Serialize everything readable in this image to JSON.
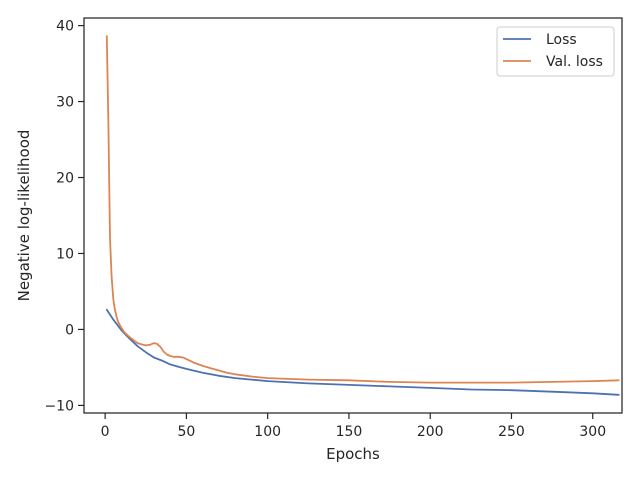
{
  "chart_data": {
    "type": "line",
    "title": "",
    "xlabel": "Epochs",
    "ylabel": "Negative log-likelihood",
    "xlim": [
      -13,
      318
    ],
    "ylim": [
      -11,
      41
    ],
    "xticks": [
      0,
      50,
      100,
      150,
      200,
      250,
      300
    ],
    "yticks": [
      -10,
      0,
      10,
      20,
      30,
      40
    ],
    "ytick_labels": [
      "−10",
      "0",
      "10",
      "20",
      "30",
      "40"
    ],
    "grid": false,
    "legend": {
      "placement": "top-right"
    },
    "series": [
      {
        "name": "Loss",
        "color": "#4c72b0",
        "x": [
          1,
          5,
          10,
          15,
          20,
          25,
          30,
          35,
          40,
          45,
          50,
          60,
          70,
          80,
          90,
          100,
          125,
          150,
          175,
          200,
          225,
          250,
          275,
          300,
          316
        ],
        "y": [
          2.6,
          1.3,
          -0.1,
          -1.2,
          -2.2,
          -3.0,
          -3.7,
          -4.1,
          -4.6,
          -4.9,
          -5.2,
          -5.7,
          -6.1,
          -6.4,
          -6.6,
          -6.8,
          -7.1,
          -7.3,
          -7.5,
          -7.7,
          -7.9,
          -8.0,
          -8.2,
          -8.4,
          -8.6
        ]
      },
      {
        "name": "Val. loss",
        "color": "#dd8452",
        "x": [
          1,
          2,
          3,
          4,
          5,
          6,
          7,
          8,
          10,
          12,
          15,
          18,
          20,
          23,
          25,
          28,
          30,
          32,
          34,
          36,
          38,
          40,
          42,
          45,
          48,
          50,
          55,
          60,
          65,
          70,
          75,
          80,
          90,
          100,
          125,
          150,
          175,
          200,
          225,
          250,
          275,
          300,
          316
        ],
        "y": [
          38.6,
          27.0,
          12.0,
          7.0,
          4.0,
          2.6,
          1.7,
          1.0,
          0.2,
          -0.4,
          -1.0,
          -1.5,
          -1.8,
          -2.0,
          -2.1,
          -2.0,
          -1.8,
          -1.9,
          -2.3,
          -2.9,
          -3.3,
          -3.5,
          -3.6,
          -3.6,
          -3.7,
          -3.9,
          -4.4,
          -4.8,
          -5.1,
          -5.4,
          -5.7,
          -5.9,
          -6.2,
          -6.4,
          -6.6,
          -6.7,
          -6.9,
          -7.0,
          -7.0,
          -7.0,
          -6.9,
          -6.8,
          -6.7
        ]
      }
    ]
  }
}
